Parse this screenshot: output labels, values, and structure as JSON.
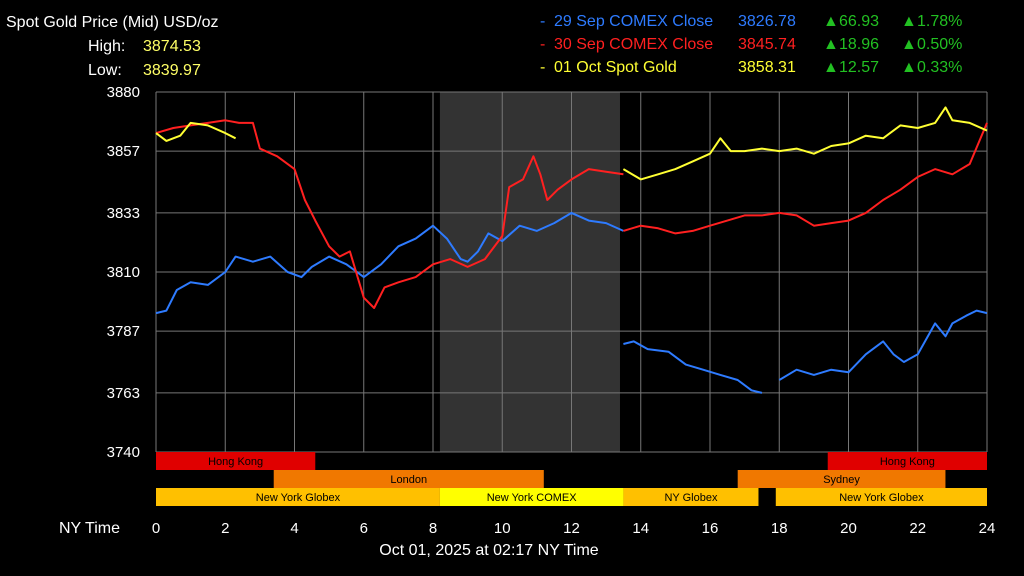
{
  "header": {
    "title": "Spot Gold Price (Mid) USD/oz",
    "high_label": "High:",
    "high_value": "3874.53",
    "low_label": "Low:",
    "low_value": "3839.97"
  },
  "legend": [
    {
      "name": "29 Sep COMEX Close",
      "price": "3826.78",
      "change": "66.93",
      "pct": "1.78%",
      "color": "#2e7bff"
    },
    {
      "name": "30 Sep COMEX Close",
      "price": "3845.74",
      "change": "18.96",
      "pct": "0.50%",
      "color": "#ff2020"
    },
    {
      "name": "01 Oct Spot Gold",
      "price": "3858.31",
      "change": "12.57",
      "pct": "0.33%",
      "color": "#ffff33"
    }
  ],
  "chart_data": {
    "type": "line",
    "xlabel": "NY Time",
    "subtitle": "Oct 01, 2025 at 02:17 NY Time",
    "xlim": [
      0,
      24
    ],
    "ylim": [
      3740,
      3880
    ],
    "y_ticks": [
      "3880",
      "3857",
      "3833",
      "3810",
      "3787",
      "3763",
      "3740"
    ],
    "x_ticks": [
      "0",
      "2",
      "4",
      "6",
      "8",
      "10",
      "12",
      "14",
      "16",
      "18",
      "20",
      "22",
      "24"
    ],
    "grid": true,
    "shaded_range": [
      8.2,
      13.4
    ],
    "series": [
      {
        "name": "29 Sep COMEX Close",
        "color": "#2e7bff",
        "segments": [
          [
            [
              0,
              3794
            ],
            [
              0.3,
              3795
            ],
            [
              0.6,
              3803
            ],
            [
              1,
              3806
            ],
            [
              1.5,
              3805
            ],
            [
              2,
              3810
            ],
            [
              2.3,
              3816
            ],
            [
              2.8,
              3814
            ],
            [
              3.3,
              3816
            ],
            [
              3.8,
              3810
            ],
            [
              4.2,
              3808
            ],
            [
              4.5,
              3812
            ],
            [
              5,
              3816
            ],
            [
              5.5,
              3813
            ],
            [
              6,
              3808
            ],
            [
              6.5,
              3813
            ],
            [
              7,
              3820
            ],
            [
              7.5,
              3823
            ],
            [
              8,
              3828
            ],
            [
              8.4,
              3823
            ],
            [
              8.8,
              3815
            ],
            [
              9,
              3814
            ],
            [
              9.3,
              3818
            ],
            [
              9.6,
              3825
            ],
            [
              10,
              3822
            ],
            [
              10.5,
              3828
            ],
            [
              11,
              3826
            ],
            [
              11.5,
              3829
            ],
            [
              12,
              3833
            ],
            [
              12.5,
              3830
            ],
            [
              13,
              3829
            ],
            [
              13.5,
              3826
            ]
          ],
          [
            [
              13.5,
              3782
            ],
            [
              13.8,
              3783
            ],
            [
              14.2,
              3780
            ],
            [
              14.8,
              3779
            ],
            [
              15.3,
              3774
            ],
            [
              15.8,
              3772
            ],
            [
              16.3,
              3770
            ],
            [
              16.8,
              3768
            ],
            [
              17.2,
              3764
            ],
            [
              17.5,
              3763
            ]
          ],
          [
            [
              18,
              3768
            ],
            [
              18.5,
              3772
            ],
            [
              19,
              3770
            ],
            [
              19.5,
              3772
            ],
            [
              20,
              3771
            ],
            [
              20.5,
              3778
            ],
            [
              21,
              3783
            ],
            [
              21.3,
              3778
            ],
            [
              21.6,
              3775
            ],
            [
              22,
              3778
            ],
            [
              22.5,
              3790
            ],
            [
              22.8,
              3785
            ],
            [
              23,
              3790
            ],
            [
              23.4,
              3793
            ],
            [
              23.7,
              3795
            ],
            [
              24,
              3794
            ]
          ]
        ]
      },
      {
        "name": "30 Sep COMEX Close",
        "color": "#ff2020",
        "segments": [
          [
            [
              0,
              3864
            ],
            [
              0.5,
              3866
            ],
            [
              1,
              3867
            ],
            [
              1.5,
              3868
            ],
            [
              2,
              3869
            ],
            [
              2.4,
              3868
            ],
            [
              2.8,
              3868
            ],
            [
              3,
              3858
            ],
            [
              3.5,
              3855
            ],
            [
              4,
              3850
            ],
            [
              4.3,
              3838
            ],
            [
              4.6,
              3830
            ],
            [
              5,
              3820
            ],
            [
              5.3,
              3816
            ],
            [
              5.6,
              3818
            ],
            [
              6,
              3800
            ],
            [
              6.3,
              3796
            ],
            [
              6.6,
              3804
            ],
            [
              7,
              3806
            ],
            [
              7.5,
              3808
            ],
            [
              8,
              3813
            ],
            [
              8.5,
              3815
            ],
            [
              9,
              3812
            ],
            [
              9.5,
              3815
            ],
            [
              10,
              3824
            ],
            [
              10.2,
              3843
            ],
            [
              10.6,
              3846
            ],
            [
              10.9,
              3855
            ],
            [
              11.1,
              3848
            ],
            [
              11.3,
              3838
            ],
            [
              11.6,
              3842
            ],
            [
              12,
              3846
            ],
            [
              12.5,
              3850
            ],
            [
              13,
              3849
            ],
            [
              13.5,
              3848
            ]
          ],
          [
            [
              13.5,
              3826
            ],
            [
              14,
              3828
            ],
            [
              14.5,
              3827
            ],
            [
              15,
              3825
            ],
            [
              15.5,
              3826
            ],
            [
              16,
              3828
            ],
            [
              16.5,
              3830
            ],
            [
              17,
              3832
            ],
            [
              17.5,
              3832
            ],
            [
              18,
              3833
            ],
            [
              18.5,
              3832
            ],
            [
              19,
              3828
            ],
            [
              19.5,
              3829
            ],
            [
              20,
              3830
            ],
            [
              20.5,
              3833
            ],
            [
              21,
              3838
            ],
            [
              21.5,
              3842
            ],
            [
              22,
              3847
            ],
            [
              22.5,
              3850
            ],
            [
              23,
              3848
            ],
            [
              23.5,
              3852
            ],
            [
              24,
              3868
            ]
          ]
        ]
      },
      {
        "name": "01 Oct Spot Gold",
        "color": "#ffff33",
        "segments": [
          [
            [
              0,
              3864
            ],
            [
              0.3,
              3861
            ],
            [
              0.7,
              3863
            ],
            [
              1,
              3868
            ],
            [
              1.5,
              3867
            ],
            [
              2,
              3864
            ],
            [
              2.3,
              3862
            ]
          ],
          [
            [
              13.5,
              3850
            ],
            [
              14,
              3846
            ],
            [
              14.5,
              3848
            ],
            [
              15,
              3850
            ],
            [
              15.5,
              3853
            ],
            [
              16,
              3856
            ],
            [
              16.3,
              3862
            ],
            [
              16.6,
              3857
            ],
            [
              17,
              3857
            ],
            [
              17.5,
              3858
            ],
            [
              18,
              3857
            ],
            [
              18.5,
              3858
            ],
            [
              19,
              3856
            ],
            [
              19.5,
              3859
            ],
            [
              20,
              3860
            ],
            [
              20.5,
              3863
            ],
            [
              21,
              3862
            ],
            [
              21.5,
              3867
            ],
            [
              22,
              3866
            ],
            [
              22.5,
              3868
            ],
            [
              22.8,
              3874
            ],
            [
              23,
              3869
            ],
            [
              23.5,
              3868
            ],
            [
              24,
              3865
            ]
          ]
        ]
      }
    ],
    "sessions": [
      {
        "name": "Hong Kong",
        "row": 0,
        "start": 0,
        "end": 4.6,
        "color": "#e00000",
        "text": "#000000"
      },
      {
        "name": "Hong Kong",
        "row": 0,
        "start": 19.4,
        "end": 24,
        "color": "#e00000",
        "text": "#000000"
      },
      {
        "name": "London",
        "row": 1,
        "start": 3.4,
        "end": 11.2,
        "color": "#f07800",
        "text": "#000000"
      },
      {
        "name": "Sydney",
        "row": 1,
        "start": 16.8,
        "end": 22.8,
        "color": "#f07800",
        "text": "#000000"
      },
      {
        "name": "New York Globex",
        "row": 2,
        "start": 0,
        "end": 8.2,
        "color": "#ffc000",
        "text": "#000000"
      },
      {
        "name": "New York COMEX",
        "row": 2,
        "start": 8.2,
        "end": 13.5,
        "color": "#ffff00",
        "text": "#000000"
      },
      {
        "name": "NY Globex",
        "row": 2,
        "start": 13.5,
        "end": 17.4,
        "color": "#ffc000",
        "text": "#000000"
      },
      {
        "name": "New York Globex",
        "row": 2,
        "start": 17.9,
        "end": 24,
        "color": "#ffc000",
        "text": "#000000"
      }
    ]
  }
}
